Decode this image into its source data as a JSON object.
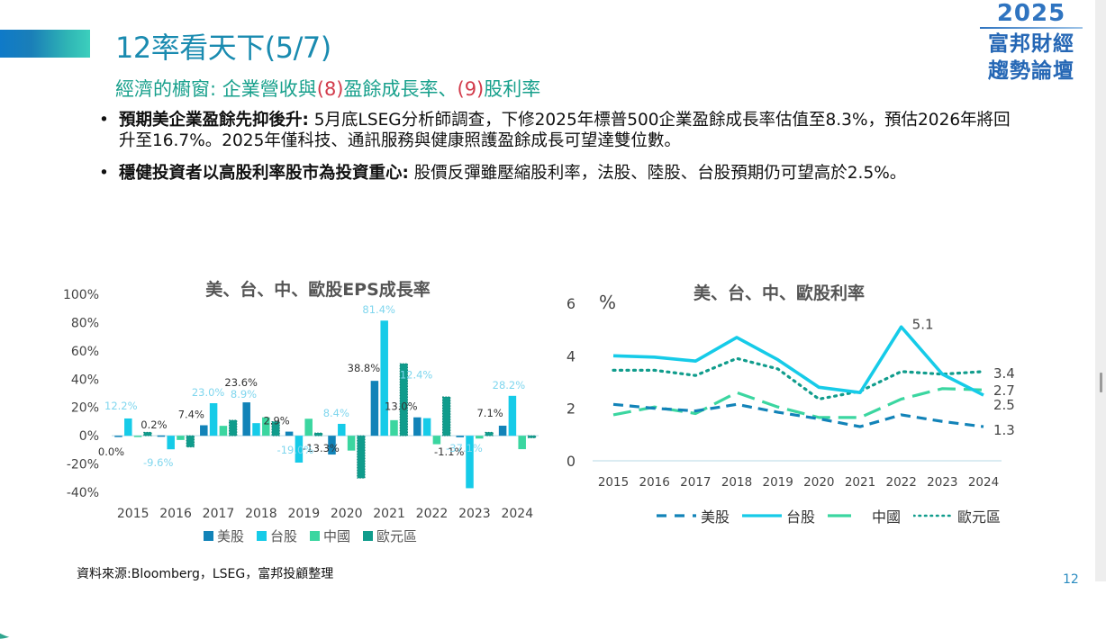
{
  "slide": {
    "title": "12率看天下(5/7)",
    "subtitle_parts": [
      {
        "text": "經濟的櫥窗: 企業營收與",
        "color": "teal"
      },
      {
        "text": "(8)",
        "color": "red"
      },
      {
        "text": "盈餘成長率、",
        "color": "teal"
      },
      {
        "text": "(9)",
        "color": "red"
      },
      {
        "text": "股利率",
        "color": "teal"
      }
    ],
    "logo": {
      "year": "2025",
      "line1": "富邦財經",
      "line2": "趨勢論壇"
    },
    "bullets": [
      {
        "bold": "預期美企業盈餘先抑後升:",
        "text": " 5月底LSEG分析師調查，下修2025年標普500企業盈餘成長率估值至8.3%，預估2026年將回升至16.7%。2025年僅科技、通訊服務與健康照護盈餘成長可望達雙位數。"
      },
      {
        "bold": "穩健投資者以高股利率股市為投資重心:",
        "text": " 股價反彈雖壓縮股利率，法股、陸股、台股預期仍可望高於2.5%。"
      }
    ],
    "source": "資料來源:Bloomberg，LSEG，富邦投顧整理",
    "page_number": "12",
    "colors": {
      "title": "#1a8bb0",
      "subtitle": "#18a08c",
      "subtitle_red": "#d23b4b",
      "us": "#1283b8",
      "tw": "#16cbe8",
      "cn": "#3bd6a0",
      "eu": "#109c8c"
    }
  },
  "chart_data": [
    {
      "type": "bar",
      "title": "美、台、中、歐股EPS成長率",
      "xlabel": "",
      "ylabel": "",
      "categories": [
        "2015",
        "2016",
        "2017",
        "2018",
        "2019",
        "2020",
        "2021",
        "2022",
        "2023",
        "2024"
      ],
      "ylim": [
        -40,
        100
      ],
      "yticks": [
        -40,
        -20,
        0,
        20,
        40,
        60,
        80,
        100
      ],
      "ytick_labels": [
        "-40%",
        "-20%",
        "0%",
        "20%",
        "40%",
        "60%",
        "80%",
        "100%"
      ],
      "legend_position": "bottom",
      "grid": false,
      "series": [
        {
          "name": "美股",
          "values": [
            0.0,
            0.2,
            7.4,
            23.6,
            2.9,
            -13.3,
            38.8,
            13.0,
            -1.1,
            7.1
          ]
        },
        {
          "name": "台股",
          "values": [
            12.2,
            -9.6,
            23.0,
            8.9,
            -19.0,
            8.4,
            81.4,
            12.4,
            -37.1,
            28.2
          ]
        },
        {
          "name": "中國",
          "values": [
            -0.5,
            -3.0,
            7.0,
            13.0,
            12.0,
            -10.5,
            11.0,
            -6.0,
            -2.0,
            -9.5
          ]
        },
        {
          "name": "歐元區",
          "values": [
            2.5,
            -8.0,
            11.0,
            10.0,
            2.0,
            -30.0,
            51.0,
            27.5,
            2.5,
            -1.5
          ]
        }
      ],
      "data_labels": [
        {
          "series": "美股",
          "category": "2015",
          "text": "0.0%"
        },
        {
          "series": "美股",
          "category": "2016",
          "text": "0.2%"
        },
        {
          "series": "美股",
          "category": "2017",
          "text": "7.4%"
        },
        {
          "series": "美股",
          "category": "2018",
          "text": "23.6%"
        },
        {
          "series": "美股",
          "category": "2019",
          "text": "2.9%"
        },
        {
          "series": "美股",
          "category": "2020",
          "text": "-13.3%"
        },
        {
          "series": "美股",
          "category": "2021",
          "text": "38.8%"
        },
        {
          "series": "美股",
          "category": "2022",
          "text": "13.0%"
        },
        {
          "series": "美股",
          "category": "2023",
          "text": "-1.1%"
        },
        {
          "series": "美股",
          "category": "2024",
          "text": "7.1%"
        },
        {
          "series": "台股",
          "category": "2015",
          "text": "12.2%"
        },
        {
          "series": "台股",
          "category": "2016",
          "text": "-9.6%"
        },
        {
          "series": "台股",
          "category": "2017",
          "text": "23.0%"
        },
        {
          "series": "台股",
          "category": "2018",
          "text": "8.9%"
        },
        {
          "series": "台股",
          "category": "2019",
          "text": "-19.0%"
        },
        {
          "series": "台股",
          "category": "2020",
          "text": "8.4%"
        },
        {
          "series": "台股",
          "category": "2021",
          "text": "81.4%"
        },
        {
          "series": "台股",
          "category": "2022",
          "text": "12.4%"
        },
        {
          "series": "台股",
          "category": "2023",
          "text": "-37.1%"
        },
        {
          "series": "台股",
          "category": "2024",
          "text": "28.2%"
        }
      ]
    },
    {
      "type": "line",
      "title": "美、台、中、歐股利率",
      "ylabel": "%",
      "x": [
        "2015",
        "2016",
        "2017",
        "2018",
        "2019",
        "2020",
        "2021",
        "2022",
        "2023",
        "2024"
      ],
      "ylim": [
        0,
        6
      ],
      "yticks": [
        0,
        2,
        4,
        6
      ],
      "legend_position": "bottom",
      "grid": false,
      "series": [
        {
          "name": "美股",
          "style": "dashed",
          "values": [
            2.15,
            2.0,
            1.9,
            2.15,
            1.85,
            1.6,
            1.3,
            1.75,
            1.5,
            1.3
          ]
        },
        {
          "name": "台股",
          "style": "solid",
          "values": [
            4.0,
            3.95,
            3.8,
            4.7,
            3.85,
            2.8,
            2.6,
            5.1,
            3.3,
            2.5
          ]
        },
        {
          "name": "中國",
          "style": "long-dash",
          "values": [
            1.75,
            2.05,
            1.8,
            2.6,
            2.05,
            1.65,
            1.65,
            2.35,
            2.75,
            2.7
          ]
        },
        {
          "name": "歐元區",
          "style": "dotted",
          "values": [
            3.45,
            3.45,
            3.25,
            3.9,
            3.5,
            2.35,
            2.65,
            3.4,
            3.3,
            3.4
          ]
        }
      ],
      "annotations": [
        {
          "series": "台股",
          "x": "2022",
          "text": "5.1"
        },
        {
          "series": "歐元區",
          "x": "2024",
          "text": "3.4"
        },
        {
          "series": "中國",
          "x": "2024",
          "text": "2.7"
        },
        {
          "series": "台股",
          "x": "2024",
          "text": "2.5"
        },
        {
          "series": "美股",
          "x": "2024",
          "text": "1.3"
        }
      ]
    }
  ]
}
